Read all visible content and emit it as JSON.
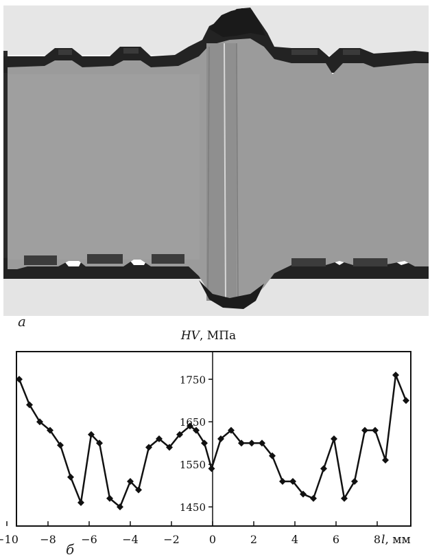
{
  "panels": {
    "a": "а",
    "b": "б"
  },
  "chart_data": {
    "type": "line",
    "ylabel_var": "HV",
    "ylabel_unit": ", МПа",
    "xlabel_var": "l",
    "xlabel_unit": ", мм",
    "xlim": [
      -10,
      10
    ],
    "ylim": [
      1405,
      1815
    ],
    "x_ticks": [
      -10,
      -8,
      -6,
      -4,
      -2,
      0,
      2,
      4,
      6,
      8
    ],
    "x_tick_labels": [
      "−10",
      "−8",
      "−6",
      "−4",
      "−2",
      "0",
      "2",
      "4",
      "6",
      "8"
    ],
    "y_ticks": [
      1450,
      1550,
      1650,
      1750
    ],
    "y_tick_labels": [
      "1450",
      "1550",
      "1650",
      "1750"
    ],
    "grid": false,
    "series": [
      {
        "x": [
          -9.4,
          -8.9,
          -8.4,
          -7.9,
          -7.4,
          -6.9,
          -6.4,
          -5.9,
          -5.5,
          -5.0,
          -4.5,
          -4.0,
          -3.6,
          -3.1,
          -2.6,
          -2.1,
          -1.6,
          -1.1,
          -0.8,
          -0.4,
          -0.05,
          0.4,
          0.9,
          1.4,
          1.9,
          2.4,
          2.9,
          3.4,
          3.9,
          4.4,
          4.9,
          5.4,
          5.9,
          6.4,
          6.9,
          7.4,
          7.9,
          8.4,
          8.9,
          9.4
        ],
        "y": [
          1750,
          1690,
          1650,
          1630,
          1595,
          1520,
          1460,
          1620,
          1600,
          1470,
          1450,
          1510,
          1490,
          1590,
          1610,
          1590,
          1620,
          1640,
          1630,
          1600,
          1540,
          1610,
          1630,
          1600,
          1600,
          1600,
          1570,
          1510,
          1510,
          1480,
          1470,
          1540,
          1610,
          1470,
          1510,
          1630,
          1630,
          1560,
          1760,
          1700
        ]
      }
    ]
  }
}
